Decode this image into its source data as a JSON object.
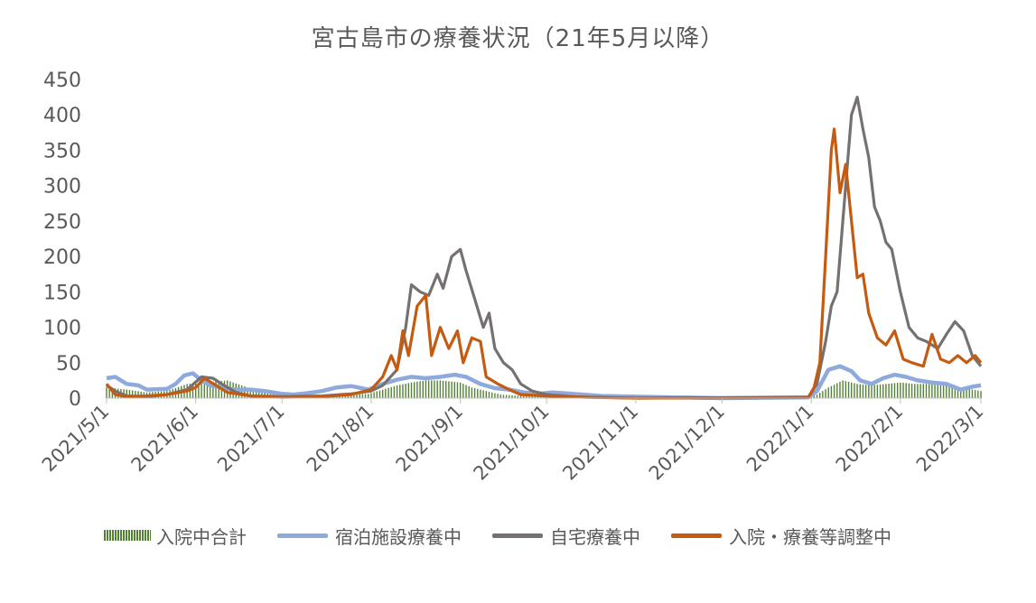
{
  "chart_data": {
    "type": "line",
    "title": "宮古島市の療養状況（21年5月以降）",
    "xlabel": "",
    "ylabel": "",
    "ylim": [
      0,
      450
    ],
    "yticks": [
      0,
      50,
      100,
      150,
      200,
      250,
      300,
      350,
      400,
      450
    ],
    "xticks": [
      "2021/5/1",
      "2021/6/1",
      "2021/7/1",
      "2021/8/1",
      "2021/9/1",
      "2021/10/1",
      "2021/11/1",
      "2021/12/1",
      "2022/1/1",
      "2022/2/1",
      "2022/3/1"
    ],
    "legend_position": "bottom",
    "grid": false,
    "series": [
      {
        "name": "入院中合計",
        "kind": "bar",
        "color": "#548235",
        "points": [
          [
            "2021-05-01",
            15
          ],
          [
            "2021-05-08",
            12
          ],
          [
            "2021-05-15",
            8
          ],
          [
            "2021-05-22",
            10
          ],
          [
            "2021-05-29",
            20
          ],
          [
            "2021-06-05",
            22
          ],
          [
            "2021-06-12",
            25
          ],
          [
            "2021-06-19",
            15
          ],
          [
            "2021-06-26",
            8
          ],
          [
            "2021-07-03",
            5
          ],
          [
            "2021-07-10",
            3
          ],
          [
            "2021-07-17",
            4
          ],
          [
            "2021-07-24",
            5
          ],
          [
            "2021-07-31",
            6
          ],
          [
            "2021-08-05",
            12
          ],
          [
            "2021-08-10",
            18
          ],
          [
            "2021-08-15",
            22
          ],
          [
            "2021-08-20",
            25
          ],
          [
            "2021-08-25",
            25
          ],
          [
            "2021-09-01",
            22
          ],
          [
            "2021-09-05",
            15
          ],
          [
            "2021-09-10",
            10
          ],
          [
            "2021-09-15",
            5
          ],
          [
            "2021-09-22",
            3
          ],
          [
            "2021-10-01",
            2
          ],
          [
            "2021-10-10",
            1
          ],
          [
            "2021-11-01",
            0
          ],
          [
            "2021-12-01",
            0
          ],
          [
            "2021-12-31",
            0
          ],
          [
            "2022-01-03",
            5
          ],
          [
            "2022-01-07",
            15
          ],
          [
            "2022-01-12",
            25
          ],
          [
            "2022-01-17",
            20
          ],
          [
            "2022-01-22",
            18
          ],
          [
            "2022-01-27",
            20
          ],
          [
            "2022-02-01",
            22
          ],
          [
            "2022-02-06",
            20
          ],
          [
            "2022-02-11",
            20
          ],
          [
            "2022-02-16",
            18
          ],
          [
            "2022-02-21",
            15
          ],
          [
            "2022-02-26",
            12
          ],
          [
            "2022-03-01",
            10
          ]
        ]
      },
      {
        "name": "宿泊施設療養中",
        "kind": "line",
        "color": "#8EA9DB",
        "points": [
          [
            "2021-05-01",
            28
          ],
          [
            "2021-05-04",
            30
          ],
          [
            "2021-05-08",
            20
          ],
          [
            "2021-05-12",
            18
          ],
          [
            "2021-05-15",
            12
          ],
          [
            "2021-05-22",
            13
          ],
          [
            "2021-05-25",
            20
          ],
          [
            "2021-05-28",
            32
          ],
          [
            "2021-05-31",
            35
          ],
          [
            "2021-06-03",
            25
          ],
          [
            "2021-06-06",
            18
          ],
          [
            "2021-06-10",
            15
          ],
          [
            "2021-06-15",
            12
          ],
          [
            "2021-06-20",
            12
          ],
          [
            "2021-06-25",
            10
          ],
          [
            "2021-07-01",
            6
          ],
          [
            "2021-07-05",
            5
          ],
          [
            "2021-07-10",
            7
          ],
          [
            "2021-07-15",
            10
          ],
          [
            "2021-07-20",
            15
          ],
          [
            "2021-07-25",
            17
          ],
          [
            "2021-07-31",
            12
          ],
          [
            "2021-08-05",
            20
          ],
          [
            "2021-08-10",
            26
          ],
          [
            "2021-08-15",
            30
          ],
          [
            "2021-08-20",
            28
          ],
          [
            "2021-08-25",
            30
          ],
          [
            "2021-08-30",
            33
          ],
          [
            "2021-09-03",
            30
          ],
          [
            "2021-09-08",
            20
          ],
          [
            "2021-09-13",
            14
          ],
          [
            "2021-09-18",
            12
          ],
          [
            "2021-09-23",
            8
          ],
          [
            "2021-09-28",
            6
          ],
          [
            "2021-10-03",
            8
          ],
          [
            "2021-10-10",
            6
          ],
          [
            "2021-10-20",
            3
          ],
          [
            "2021-11-01",
            2
          ],
          [
            "2021-11-15",
            1
          ],
          [
            "2021-12-01",
            0
          ],
          [
            "2021-12-31",
            1
          ],
          [
            "2022-01-03",
            10
          ],
          [
            "2022-01-07",
            40
          ],
          [
            "2022-01-11",
            45
          ],
          [
            "2022-01-15",
            38
          ],
          [
            "2022-01-18",
            25
          ],
          [
            "2022-01-22",
            20
          ],
          [
            "2022-01-26",
            28
          ],
          [
            "2022-01-30",
            33
          ],
          [
            "2022-02-03",
            30
          ],
          [
            "2022-02-07",
            25
          ],
          [
            "2022-02-12",
            22
          ],
          [
            "2022-02-17",
            20
          ],
          [
            "2022-02-22",
            12
          ],
          [
            "2022-02-26",
            16
          ],
          [
            "2022-03-01",
            18
          ]
        ]
      },
      {
        "name": "自宅療養中",
        "kind": "line",
        "color": "#767171",
        "points": [
          [
            "2021-05-01",
            18
          ],
          [
            "2021-05-04",
            10
          ],
          [
            "2021-05-08",
            3
          ],
          [
            "2021-05-15",
            2
          ],
          [
            "2021-05-22",
            5
          ],
          [
            "2021-05-29",
            12
          ],
          [
            "2021-06-03",
            30
          ],
          [
            "2021-06-07",
            28
          ],
          [
            "2021-06-10",
            20
          ],
          [
            "2021-06-15",
            8
          ],
          [
            "2021-06-20",
            3
          ],
          [
            "2021-07-01",
            2
          ],
          [
            "2021-07-15",
            3
          ],
          [
            "2021-07-25",
            6
          ],
          [
            "2021-08-01",
            10
          ],
          [
            "2021-08-05",
            18
          ],
          [
            "2021-08-10",
            40
          ],
          [
            "2021-08-13",
            100
          ],
          [
            "2021-08-15",
            160
          ],
          [
            "2021-08-18",
            150
          ],
          [
            "2021-08-21",
            145
          ],
          [
            "2021-08-24",
            175
          ],
          [
            "2021-08-26",
            155
          ],
          [
            "2021-08-29",
            200
          ],
          [
            "2021-09-01",
            210
          ],
          [
            "2021-09-03",
            180
          ],
          [
            "2021-09-06",
            140
          ],
          [
            "2021-09-09",
            100
          ],
          [
            "2021-09-11",
            120
          ],
          [
            "2021-09-13",
            70
          ],
          [
            "2021-09-16",
            50
          ],
          [
            "2021-09-19",
            40
          ],
          [
            "2021-09-22",
            20
          ],
          [
            "2021-09-26",
            10
          ],
          [
            "2021-10-01",
            5
          ],
          [
            "2021-10-10",
            2
          ],
          [
            "2021-10-20",
            1
          ],
          [
            "2021-11-01",
            0
          ],
          [
            "2021-12-31",
            1
          ],
          [
            "2022-01-03",
            20
          ],
          [
            "2022-01-06",
            80
          ],
          [
            "2022-01-08",
            130
          ],
          [
            "2022-01-10",
            150
          ],
          [
            "2022-01-13",
            300
          ],
          [
            "2022-01-15",
            400
          ],
          [
            "2022-01-17",
            425
          ],
          [
            "2022-01-19",
            380
          ],
          [
            "2022-01-21",
            340
          ],
          [
            "2022-01-23",
            270
          ],
          [
            "2022-01-25",
            250
          ],
          [
            "2022-01-27",
            220
          ],
          [
            "2022-01-29",
            210
          ],
          [
            "2022-02-01",
            150
          ],
          [
            "2022-02-04",
            100
          ],
          [
            "2022-02-07",
            85
          ],
          [
            "2022-02-10",
            80
          ],
          [
            "2022-02-14",
            70
          ],
          [
            "2022-02-17",
            90
          ],
          [
            "2022-02-20",
            108
          ],
          [
            "2022-02-23",
            95
          ],
          [
            "2022-02-26",
            60
          ],
          [
            "2022-03-01",
            45
          ]
        ]
      },
      {
        "name": "入院・療養等調整中",
        "kind": "line",
        "color": "#C55A11",
        "points": [
          [
            "2021-05-01",
            20
          ],
          [
            "2021-05-04",
            5
          ],
          [
            "2021-05-08",
            2
          ],
          [
            "2021-05-15",
            3
          ],
          [
            "2021-05-22",
            5
          ],
          [
            "2021-05-29",
            10
          ],
          [
            "2021-06-01",
            15
          ],
          [
            "2021-06-04",
            28
          ],
          [
            "2021-06-08",
            18
          ],
          [
            "2021-06-12",
            8
          ],
          [
            "2021-06-20",
            3
          ],
          [
            "2021-07-01",
            1
          ],
          [
            "2021-07-15",
            2
          ],
          [
            "2021-07-25",
            5
          ],
          [
            "2021-08-01",
            12
          ],
          [
            "2021-08-05",
            30
          ],
          [
            "2021-08-08",
            60
          ],
          [
            "2021-08-10",
            40
          ],
          [
            "2021-08-12",
            95
          ],
          [
            "2021-08-14",
            60
          ],
          [
            "2021-08-17",
            130
          ],
          [
            "2021-08-20",
            145
          ],
          [
            "2021-08-22",
            60
          ],
          [
            "2021-08-25",
            100
          ],
          [
            "2021-08-28",
            70
          ],
          [
            "2021-08-31",
            95
          ],
          [
            "2021-09-02",
            50
          ],
          [
            "2021-09-05",
            85
          ],
          [
            "2021-09-08",
            80
          ],
          [
            "2021-09-10",
            30
          ],
          [
            "2021-09-14",
            20
          ],
          [
            "2021-09-18",
            12
          ],
          [
            "2021-09-22",
            5
          ],
          [
            "2021-10-01",
            3
          ],
          [
            "2021-10-15",
            1
          ],
          [
            "2021-11-01",
            0
          ],
          [
            "2021-12-31",
            1
          ],
          [
            "2022-01-02",
            15
          ],
          [
            "2022-01-04",
            50
          ],
          [
            "2022-01-06",
            200
          ],
          [
            "2022-01-08",
            350
          ],
          [
            "2022-01-09",
            380
          ],
          [
            "2022-01-11",
            290
          ],
          [
            "2022-01-13",
            330
          ],
          [
            "2022-01-15",
            250
          ],
          [
            "2022-01-17",
            170
          ],
          [
            "2022-01-19",
            175
          ],
          [
            "2022-01-21",
            120
          ],
          [
            "2022-01-24",
            85
          ],
          [
            "2022-01-27",
            75
          ],
          [
            "2022-01-30",
            95
          ],
          [
            "2022-02-02",
            55
          ],
          [
            "2022-02-05",
            50
          ],
          [
            "2022-02-09",
            45
          ],
          [
            "2022-02-12",
            90
          ],
          [
            "2022-02-15",
            55
          ],
          [
            "2022-02-18",
            50
          ],
          [
            "2022-02-21",
            60
          ],
          [
            "2022-02-24",
            50
          ],
          [
            "2022-02-27",
            60
          ],
          [
            "2022-03-01",
            50
          ]
        ]
      }
    ]
  },
  "legend": {
    "items": [
      {
        "label": "入院中合計",
        "color": "#548235"
      },
      {
        "label": "宿泊施設療養中",
        "color": "#8EA9DB"
      },
      {
        "label": "自宅療養中",
        "color": "#767171"
      },
      {
        "label": "入院・療養等調整中",
        "color": "#C55A11"
      }
    ]
  }
}
